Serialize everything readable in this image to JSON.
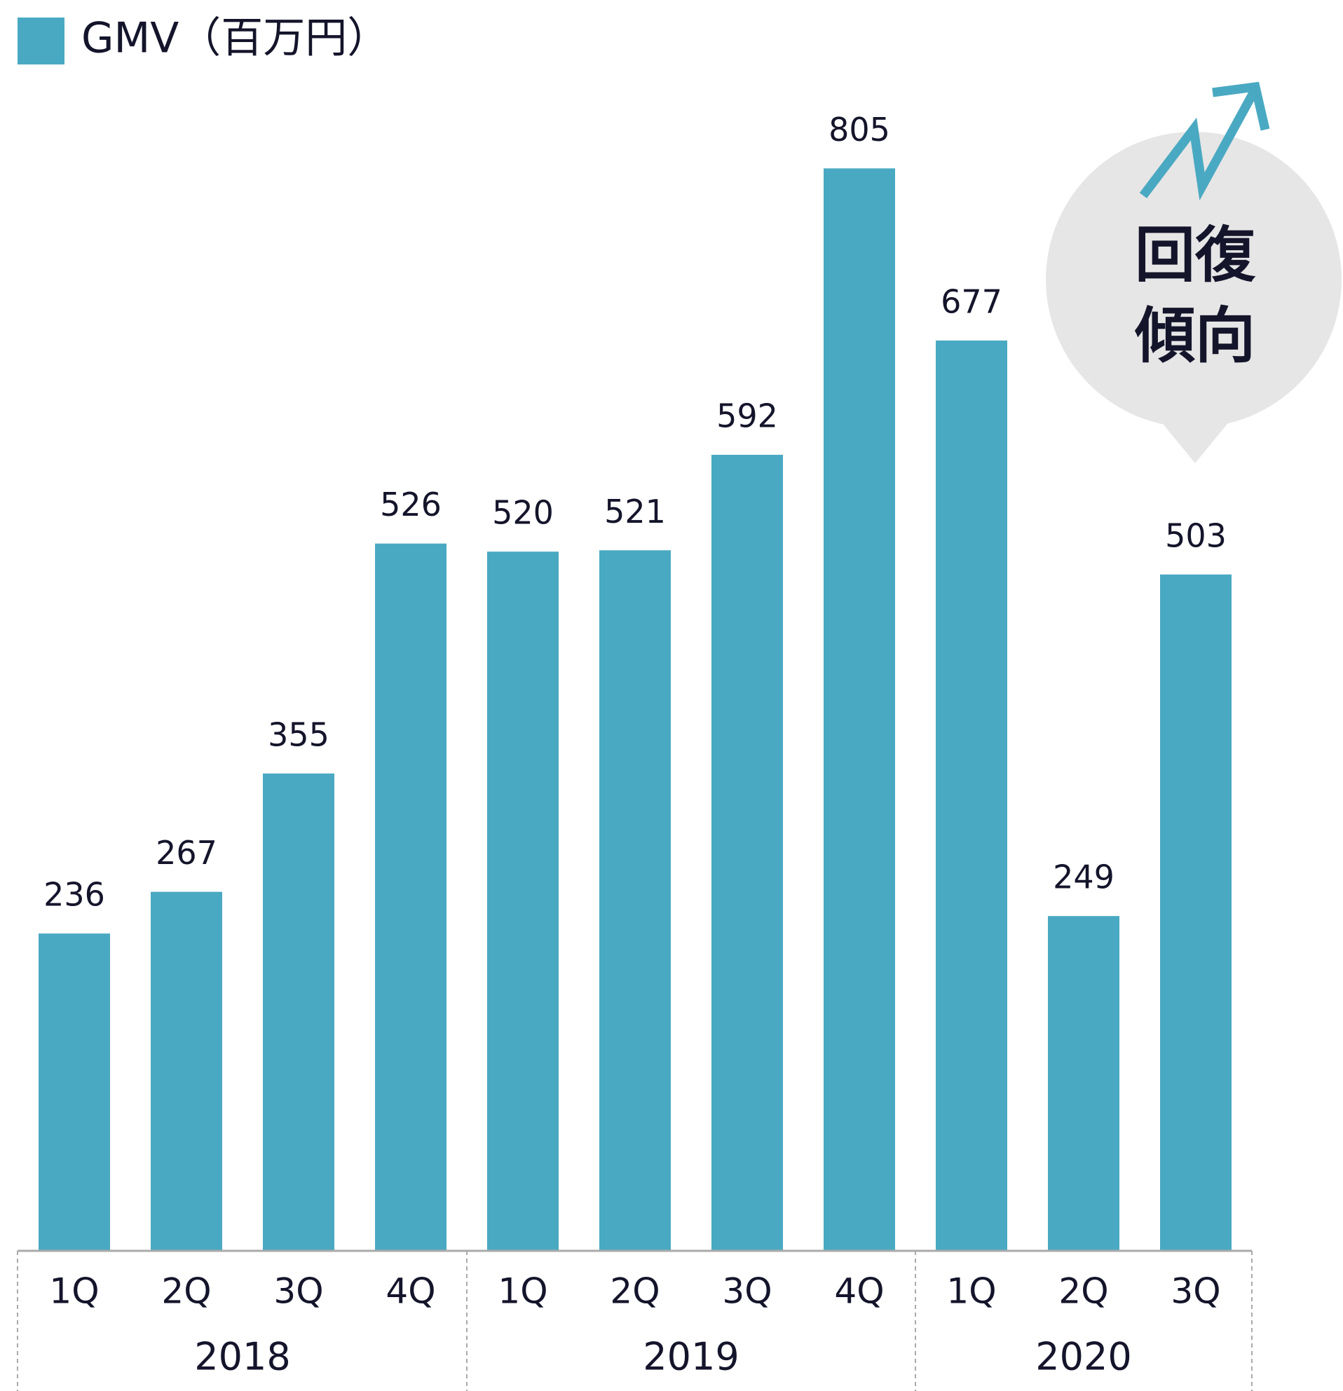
{
  "chart_data": {
    "type": "bar",
    "legend_label": "GMV（百万円）",
    "color": "#4aa9c2",
    "categories": [
      "1Q",
      "2Q",
      "3Q",
      "4Q",
      "1Q",
      "2Q",
      "3Q",
      "4Q",
      "1Q",
      "2Q",
      "3Q"
    ],
    "years": [
      "2018",
      "2018",
      "2018",
      "2018",
      "2019",
      "2019",
      "2019",
      "2019",
      "2020",
      "2020",
      "2020"
    ],
    "values": [
      236,
      267,
      355,
      526,
      520,
      521,
      592,
      805,
      677,
      249,
      503
    ],
    "ylim": [
      0,
      900
    ],
    "annotation_lines": [
      "回復",
      "傾向"
    ]
  }
}
